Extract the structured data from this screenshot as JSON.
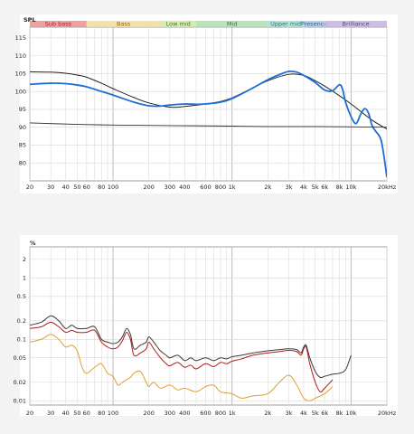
{
  "chart_data": [
    {
      "type": "line",
      "y_label": "SPL",
      "x_scale": "log",
      "xlim": [
        20,
        20000
      ],
      "ylim": [
        75,
        118
      ],
      "y_ticks": [
        "115",
        "110",
        "105",
        "100",
        "95",
        "90",
        "85",
        "80"
      ],
      "y_tick_values": [
        115,
        110,
        105,
        100,
        95,
        90,
        85,
        80
      ],
      "x_ticks": [
        "20",
        "30",
        "40",
        "50",
        "60",
        "80",
        "100",
        "200",
        "300",
        "400",
        "600",
        "800",
        "1k",
        "2k",
        "3k",
        "4k",
        "5k",
        "6k",
        "8k",
        "10k",
        "20kHz"
      ],
      "x_tick_values": [
        20,
        30,
        40,
        50,
        60,
        80,
        100,
        200,
        300,
        400,
        600,
        800,
        1000,
        2000,
        3000,
        4000,
        5000,
        6000,
        8000,
        10000,
        20000
      ],
      "grid": true,
      "bands": [
        {
          "label": "Sub bass",
          "from": 20,
          "to": 60,
          "color": "#f08e8e",
          "text_color": "#b02020"
        },
        {
          "label": "Bass",
          "from": 60,
          "to": 250,
          "color": "#f3dc95",
          "text_color": "#8a6a10"
        },
        {
          "label": "Low mid",
          "from": 250,
          "to": 500,
          "color": "#cdeaa0",
          "text_color": "#4a7a1a"
        },
        {
          "label": "Mid",
          "from": 500,
          "to": 2000,
          "color": "#a9e0a9",
          "text_color": "#2a7a3a"
        },
        {
          "label": "Upper mid",
          "from": 2000,
          "to": 4000,
          "color": "#a8dfd3",
          "text_color": "#1f7a70"
        },
        {
          "label": "Presence",
          "from": 4000,
          "to": 6000,
          "color": "#a8cde8",
          "text_color": "#2a62a0"
        },
        {
          "label": "Brilliance",
          "from": 6000,
          "to": 20000,
          "color": "#c6b3de",
          "text_color": "#5a3a8a"
        }
      ],
      "series": [
        {
          "color": "#222222",
          "width": 1.0,
          "x": [
            20,
            30,
            40,
            50,
            60,
            80,
            100,
            150,
            200,
            300,
            400,
            600,
            800,
            1000,
            1500,
            2000,
            3000,
            4000,
            5000,
            6000,
            8000,
            10000,
            15000,
            20000
          ],
          "y": [
            105.5,
            105.4,
            105.1,
            104.6,
            104,
            102.3,
            100.8,
            98.3,
            96.8,
            95.6,
            95.8,
            96.5,
            97.2,
            98.2,
            101,
            103,
            104.8,
            104.5,
            103,
            101.5,
            98.8,
            96.5,
            92,
            89.5
          ]
        },
        {
          "color": "#1e6fd0",
          "width": 1.8,
          "x": [
            20,
            30,
            40,
            50,
            60,
            80,
            100,
            150,
            200,
            250,
            300,
            400,
            500,
            600,
            800,
            1000,
            1500,
            2000,
            2500,
            3000,
            3500,
            4000,
            5000,
            6000,
            7000,
            8000,
            8500,
            9000,
            10000,
            11000,
            12000,
            13000,
            14000,
            15000,
            16000,
            18000,
            20000
          ],
          "y": [
            102,
            102.3,
            102.2,
            101.8,
            101.3,
            100,
            99,
            97,
            96,
            95.9,
            96.2,
            96.5,
            96.4,
            96.5,
            97,
            98,
            101,
            103.3,
            104.7,
            105.6,
            105.4,
            104.5,
            102.5,
            100.4,
            100.2,
            101.9,
            100.5,
            97,
            93,
            91,
            93.5,
            95.2,
            94,
            90.5,
            89,
            86,
            76
          ]
        },
        {
          "color": "#333333",
          "width": 0.9,
          "x": [
            20,
            50,
            100,
            200,
            500,
            1000,
            2000,
            5000,
            10000,
            20000
          ],
          "y": [
            91.2,
            90.8,
            90.6,
            90.5,
            90.4,
            90.3,
            90.2,
            90.2,
            90.1,
            90
          ]
        }
      ]
    },
    {
      "type": "line",
      "y_label": "%",
      "x_scale": "log",
      "y_scale": "log",
      "xlim": [
        20,
        20000
      ],
      "ylim": [
        0.0085,
        3.2
      ],
      "y_ticks": [
        "2",
        "1",
        "0.5",
        "0.2",
        "0.1",
        "0.05",
        "0.02",
        "0.01"
      ],
      "y_tick_values": [
        2,
        1,
        0.5,
        0.2,
        0.1,
        0.05,
        0.02,
        0.01
      ],
      "x_ticks": [
        "20",
        "30",
        "40",
        "50",
        "60",
        "80",
        "100",
        "200",
        "300",
        "400",
        "600",
        "800",
        "1k",
        "2k",
        "3k",
        "4k",
        "5k",
        "6k",
        "8k",
        "10k",
        "20kHz"
      ],
      "x_tick_values": [
        20,
        30,
        40,
        50,
        60,
        80,
        100,
        200,
        300,
        400,
        600,
        800,
        1000,
        2000,
        3000,
        4000,
        5000,
        6000,
        8000,
        10000,
        20000
      ],
      "grid": true,
      "series": [
        {
          "color": "#3a3a3a",
          "width": 1.0,
          "x": [
            20,
            25,
            30,
            35,
            40,
            45,
            50,
            60,
            70,
            80,
            90,
            100,
            110,
            120,
            130,
            140,
            150,
            170,
            190,
            200,
            220,
            250,
            280,
            300,
            350,
            400,
            450,
            500,
            600,
            700,
            800,
            900,
            1000,
            1200,
            1500,
            2000,
            2500,
            3000,
            3500,
            3800,
            4000,
            4200,
            4500,
            5000,
            5500,
            6000,
            7000,
            8000,
            9000,
            10000
          ],
          "y": [
            0.17,
            0.19,
            0.24,
            0.2,
            0.15,
            0.17,
            0.15,
            0.15,
            0.16,
            0.1,
            0.09,
            0.085,
            0.09,
            0.11,
            0.15,
            0.12,
            0.07,
            0.08,
            0.09,
            0.11,
            0.09,
            0.065,
            0.055,
            0.05,
            0.055,
            0.045,
            0.05,
            0.045,
            0.05,
            0.045,
            0.05,
            0.048,
            0.052,
            0.055,
            0.06,
            0.065,
            0.068,
            0.07,
            0.068,
            0.06,
            0.075,
            0.08,
            0.05,
            0.03,
            0.024,
            0.025,
            0.027,
            0.028,
            0.032,
            0.055
          ]
        },
        {
          "color": "#b01a1a",
          "width": 1.0,
          "x": [
            20,
            25,
            30,
            35,
            40,
            45,
            50,
            60,
            70,
            80,
            90,
            100,
            110,
            120,
            130,
            140,
            150,
            170,
            190,
            200,
            220,
            250,
            280,
            300,
            350,
            400,
            450,
            500,
            600,
            700,
            800,
            900,
            1000,
            1200,
            1500,
            2000,
            2500,
            3000,
            3500,
            3800,
            4000,
            4200,
            4500,
            5000,
            5500,
            6000,
            7000
          ],
          "y": [
            0.15,
            0.16,
            0.19,
            0.16,
            0.13,
            0.14,
            0.13,
            0.13,
            0.14,
            0.09,
            0.075,
            0.07,
            0.075,
            0.095,
            0.13,
            0.1,
            0.055,
            0.06,
            0.07,
            0.09,
            0.07,
            0.05,
            0.04,
            0.037,
            0.042,
            0.035,
            0.038,
            0.033,
            0.04,
            0.036,
            0.042,
            0.04,
            0.044,
            0.048,
            0.055,
            0.06,
            0.063,
            0.066,
            0.063,
            0.055,
            0.07,
            0.075,
            0.04,
            0.02,
            0.014,
            0.016,
            0.022
          ]
        },
        {
          "color": "#e0a030",
          "width": 1.0,
          "x": [
            20,
            25,
            30,
            35,
            40,
            45,
            50,
            55,
            60,
            70,
            80,
            90,
            100,
            110,
            120,
            130,
            140,
            150,
            170,
            190,
            200,
            220,
            250,
            300,
            350,
            400,
            500,
            600,
            700,
            800,
            1000,
            1200,
            1500,
            2000,
            2500,
            3000,
            3500,
            4000,
            4500,
            5000,
            6000,
            7000
          ],
          "y": [
            0.09,
            0.1,
            0.12,
            0.1,
            0.075,
            0.08,
            0.065,
            0.035,
            0.028,
            0.035,
            0.04,
            0.028,
            0.025,
            0.018,
            0.02,
            0.022,
            0.024,
            0.028,
            0.03,
            0.02,
            0.017,
            0.02,
            0.016,
            0.018,
            0.015,
            0.016,
            0.014,
            0.017,
            0.018,
            0.014,
            0.013,
            0.011,
            0.012,
            0.013,
            0.02,
            0.026,
            0.018,
            0.011,
            0.01,
            0.011,
            0.013,
            0.017
          ]
        }
      ]
    }
  ]
}
